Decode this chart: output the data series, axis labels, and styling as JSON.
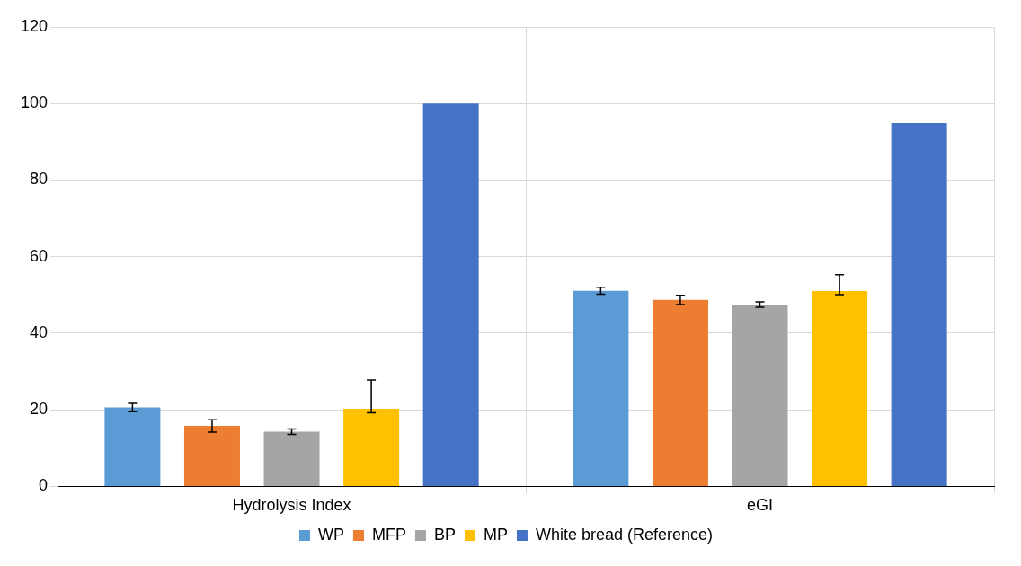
{
  "chart_data": {
    "type": "bar",
    "categories": [
      "Hydrolysis Index",
      "eGI"
    ],
    "series": [
      {
        "name": "WP",
        "color": "#5b9bd5",
        "values": [
          20.6,
          51.1
        ],
        "errors": [
          1.1,
          0.9
        ]
      },
      {
        "name": "MFP",
        "color": "#ed7d31",
        "values": [
          15.8,
          48.7
        ],
        "errors": [
          1.6,
          1.2
        ]
      },
      {
        "name": "BP",
        "color": "#a5a5a5",
        "values": [
          14.3,
          47.5
        ],
        "errors": [
          0.7,
          0.7
        ]
      },
      {
        "name": "MP",
        "color": "#ffc000",
        "values": [
          20.3,
          51.0
        ],
        "errors": [
          [
            19.2,
            27.8
          ],
          [
            50.1,
            55.3
          ]
        ]
      },
      {
        "name": "White bread (Reference)",
        "color": "#4472c4",
        "values": [
          100,
          94.9
        ]
      }
    ],
    "ylim": [
      0,
      120
    ],
    "yticks": [
      0,
      20,
      40,
      60,
      80,
      100,
      120
    ],
    "grid": true,
    "legend": "bottom"
  }
}
